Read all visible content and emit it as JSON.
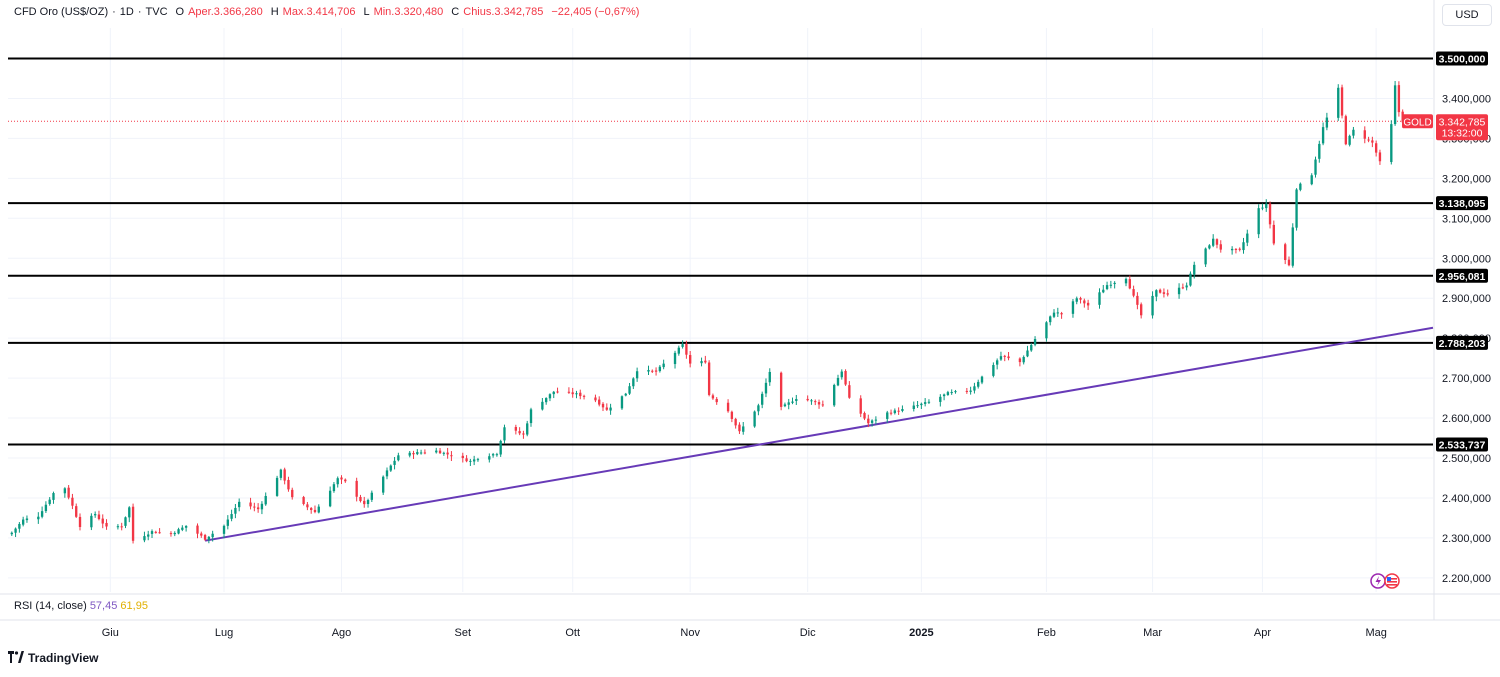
{
  "header": {
    "instrument": "CFD Oro (US$/OZ)",
    "interval": "1D",
    "source": "TVC",
    "open_label": "O",
    "open_value": "Aper.3.366,280",
    "high_label": "H",
    "high_value": "Max.3.414,706",
    "low_label": "L",
    "low_value": "Min.3.320,480",
    "close_label": "C",
    "close_value": "Chius.3.342,785",
    "change_value": "−22,405 (−0,67%)"
  },
  "currency": "USD",
  "rsi": {
    "name": "RSI (14, close)",
    "value1": "57,45",
    "value2": "61,95"
  },
  "brand": "TradingView",
  "price_label": {
    "symbol": "GOLD",
    "price": "3.342,785",
    "countdown": "13:32:00"
  },
  "colors": {
    "up": "#089981",
    "down": "#f23645",
    "trendline": "#673ab7",
    "level": "#000000"
  },
  "chart_data": {
    "type": "candlestick",
    "price_scale": {
      "min": 2150,
      "max": 3550
    },
    "y_ticks": [
      {
        "value": 2200,
        "label": "2.200,000"
      },
      {
        "value": 2300,
        "label": "2.300,000"
      },
      {
        "value": 2400,
        "label": "2.400,000"
      },
      {
        "value": 2500,
        "label": "2.500,000"
      },
      {
        "value": 2600,
        "label": "2.600,000"
      },
      {
        "value": 2700,
        "label": "2.700,000"
      },
      {
        "value": 2800,
        "label": "2.800,000"
      },
      {
        "value": 2900,
        "label": "2.900,000"
      },
      {
        "value": 3000,
        "label": "3.000,000"
      },
      {
        "value": 3100,
        "label": "3.100,000"
      },
      {
        "value": 3200,
        "label": "3.200,000"
      },
      {
        "value": 3300,
        "label": "3.300,000"
      },
      {
        "value": 3400,
        "label": "3.400,000"
      }
    ],
    "x_ticks": [
      {
        "date": "2024-06-01",
        "label": "Giu",
        "bold": false
      },
      {
        "date": "2024-07-01",
        "label": "Lug",
        "bold": false
      },
      {
        "date": "2024-08-01",
        "label": "Ago",
        "bold": false
      },
      {
        "date": "2024-09-02",
        "label": "Set",
        "bold": false
      },
      {
        "date": "2024-10-01",
        "label": "Ott",
        "bold": false
      },
      {
        "date": "2024-11-01",
        "label": "Nov",
        "bold": false
      },
      {
        "date": "2024-12-02",
        "label": "Dic",
        "bold": false
      },
      {
        "date": "2025-01-01",
        "label": "2025",
        "bold": true
      },
      {
        "date": "2025-02-03",
        "label": "Feb",
        "bold": false
      },
      {
        "date": "2025-03-03",
        "label": "Mar",
        "bold": false
      },
      {
        "date": "2025-04-01",
        "label": "Apr",
        "bold": false
      },
      {
        "date": "2025-05-01",
        "label": "Mag",
        "bold": false
      }
    ],
    "horizontal_levels": [
      {
        "value": 3500.0,
        "label": "3.500,000"
      },
      {
        "value": 3138.095,
        "label": "3.138,095"
      },
      {
        "value": 2956.081,
        "label": "2.956,081"
      },
      {
        "value": 2788.203,
        "label": "2.788,203"
      },
      {
        "value": 2533.737,
        "label": "2.533,737"
      }
    ],
    "trendline": {
      "start": {
        "date": "2024-06-26",
        "value": 2293
      },
      "end": {
        "date": "2025-05-16",
        "value": 2826
      }
    },
    "last_price": 3342.785,
    "anchors": [
      {
        "date": "2024-05-06",
        "value": 2313
      },
      {
        "date": "2024-05-09",
        "value": 2345
      },
      {
        "date": "2024-05-13",
        "value": 2355
      },
      {
        "date": "2024-05-17",
        "value": 2412
      },
      {
        "date": "2024-05-20",
        "value": 2425
      },
      {
        "date": "2024-05-22",
        "value": 2380
      },
      {
        "date": "2024-05-24",
        "value": 2330
      },
      {
        "date": "2024-05-28",
        "value": 2360
      },
      {
        "date": "2024-05-31",
        "value": 2326
      },
      {
        "date": "2024-06-04",
        "value": 2330
      },
      {
        "date": "2024-06-06",
        "value": 2376
      },
      {
        "date": "2024-06-07",
        "value": 2293
      },
      {
        "date": "2024-06-12",
        "value": 2316
      },
      {
        "date": "2024-06-17",
        "value": 2310
      },
      {
        "date": "2024-06-21",
        "value": 2330
      },
      {
        "date": "2024-06-26",
        "value": 2298
      },
      {
        "date": "2024-07-01",
        "value": 2330
      },
      {
        "date": "2024-07-05",
        "value": 2390
      },
      {
        "date": "2024-07-10",
        "value": 2372
      },
      {
        "date": "2024-07-16",
        "value": 2468
      },
      {
        "date": "2024-07-19",
        "value": 2400
      },
      {
        "date": "2024-07-25",
        "value": 2365
      },
      {
        "date": "2024-07-31",
        "value": 2448
      },
      {
        "date": "2024-08-02",
        "value": 2440
      },
      {
        "date": "2024-08-07",
        "value": 2382
      },
      {
        "date": "2024-08-13",
        "value": 2467
      },
      {
        "date": "2024-08-16",
        "value": 2507
      },
      {
        "date": "2024-08-20",
        "value": 2512
      },
      {
        "date": "2024-08-26",
        "value": 2518
      },
      {
        "date": "2024-09-04",
        "value": 2492
      },
      {
        "date": "2024-09-06",
        "value": 2500
      },
      {
        "date": "2024-09-11",
        "value": 2512
      },
      {
        "date": "2024-09-13",
        "value": 2578
      },
      {
        "date": "2024-09-18",
        "value": 2558
      },
      {
        "date": "2024-09-20",
        "value": 2620
      },
      {
        "date": "2024-09-26",
        "value": 2666
      },
      {
        "date": "2024-10-02",
        "value": 2660
      },
      {
        "date": "2024-10-07",
        "value": 2645
      },
      {
        "date": "2024-10-10",
        "value": 2620
      },
      {
        "date": "2024-10-15",
        "value": 2662
      },
      {
        "date": "2024-10-18",
        "value": 2720
      },
      {
        "date": "2024-10-23",
        "value": 2716
      },
      {
        "date": "2024-10-30",
        "value": 2783
      },
      {
        "date": "2024-11-01",
        "value": 2736
      },
      {
        "date": "2024-11-05",
        "value": 2742
      },
      {
        "date": "2024-11-06",
        "value": 2658
      },
      {
        "date": "2024-11-11",
        "value": 2618
      },
      {
        "date": "2024-11-14",
        "value": 2565
      },
      {
        "date": "2024-11-19",
        "value": 2631
      },
      {
        "date": "2024-11-22",
        "value": 2716
      },
      {
        "date": "2024-11-25",
        "value": 2625
      },
      {
        "date": "2024-11-29",
        "value": 2650
      },
      {
        "date": "2024-12-03",
        "value": 2643
      },
      {
        "date": "2024-12-06",
        "value": 2633
      },
      {
        "date": "2024-12-11",
        "value": 2718
      },
      {
        "date": "2024-12-13",
        "value": 2648
      },
      {
        "date": "2024-12-18",
        "value": 2587
      },
      {
        "date": "2024-12-23",
        "value": 2613
      },
      {
        "date": "2024-12-27",
        "value": 2621
      },
      {
        "date": "2025-01-03",
        "value": 2640
      },
      {
        "date": "2025-01-08",
        "value": 2662
      },
      {
        "date": "2025-01-14",
        "value": 2670
      },
      {
        "date": "2025-01-17",
        "value": 2703
      },
      {
        "date": "2025-01-22",
        "value": 2755
      },
      {
        "date": "2025-01-27",
        "value": 2740
      },
      {
        "date": "2025-01-31",
        "value": 2798
      },
      {
        "date": "2025-02-05",
        "value": 2866
      },
      {
        "date": "2025-02-07",
        "value": 2860
      },
      {
        "date": "2025-02-11",
        "value": 2900
      },
      {
        "date": "2025-02-14",
        "value": 2882
      },
      {
        "date": "2025-02-19",
        "value": 2933
      },
      {
        "date": "2025-02-24",
        "value": 2951
      },
      {
        "date": "2025-02-28",
        "value": 2857
      },
      {
        "date": "2025-03-04",
        "value": 2918
      },
      {
        "date": "2025-03-07",
        "value": 2910
      },
      {
        "date": "2025-03-12",
        "value": 2934
      },
      {
        "date": "2025-03-14",
        "value": 2984
      },
      {
        "date": "2025-03-19",
        "value": 3047
      },
      {
        "date": "2025-03-21",
        "value": 3023
      },
      {
        "date": "2025-03-26",
        "value": 3019
      },
      {
        "date": "2025-03-31",
        "value": 3124
      },
      {
        "date": "2025-04-02",
        "value": 3134
      },
      {
        "date": "2025-04-04",
        "value": 3037
      },
      {
        "date": "2025-04-08",
        "value": 2982
      },
      {
        "date": "2025-04-10",
        "value": 3175
      },
      {
        "date": "2025-04-14",
        "value": 3210
      },
      {
        "date": "2025-04-17",
        "value": 3327
      },
      {
        "date": "2025-04-21",
        "value": 3424
      },
      {
        "date": "2025-04-23",
        "value": 3288
      },
      {
        "date": "2025-04-25",
        "value": 3320
      },
      {
        "date": "2025-04-30",
        "value": 3289
      },
      {
        "date": "2025-05-02",
        "value": 3240
      },
      {
        "date": "2025-05-05",
        "value": 3334
      },
      {
        "date": "2025-05-06",
        "value": 3431
      },
      {
        "date": "2025-05-07",
        "value": 3366
      },
      {
        "date": "2025-05-08",
        "value": 3342.785
      }
    ]
  }
}
